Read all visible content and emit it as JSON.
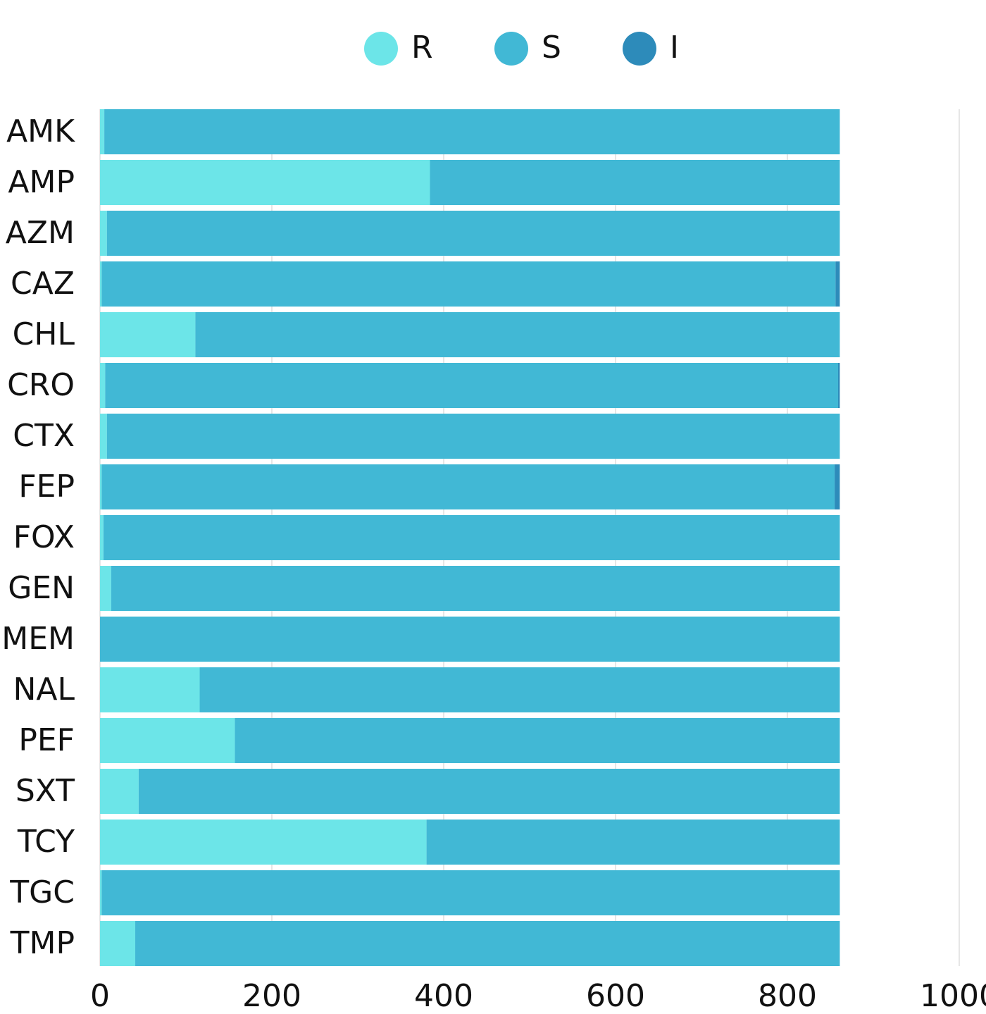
{
  "chart_data": {
    "type": "stacked-bar-horizontal",
    "categories": [
      "AMK",
      "AMP",
      "AZM",
      "CAZ",
      "CHL",
      "CRO",
      "CTX",
      "FEP",
      "FOX",
      "GEN",
      "MEM",
      "NAL",
      "PEF",
      "SXT",
      "TCY",
      "TGC",
      "TMP"
    ],
    "series": [
      {
        "name": "R",
        "color": "#6ce5e8",
        "values": [
          5,
          384,
          8,
          2,
          111,
          6,
          8,
          2,
          4,
          13,
          0,
          116,
          157,
          45,
          380,
          2,
          41
        ]
      },
      {
        "name": "S",
        "color": "#41b8d5",
        "values": [
          856,
          477,
          853,
          854,
          750,
          853,
          853,
          853,
          857,
          848,
          861,
          745,
          704,
          816,
          481,
          859,
          820
        ]
      },
      {
        "name": "I",
        "color": "#2d8bba",
        "values": [
          0,
          0,
          0,
          5,
          0,
          2,
          0,
          6,
          0,
          0,
          0,
          0,
          0,
          0,
          0,
          0,
          0
        ]
      }
    ],
    "xlim": [
      0,
      1000
    ],
    "xticks": [
      0,
      200,
      400,
      600,
      800,
      1000
    ],
    "grid": true,
    "legend": "top"
  }
}
